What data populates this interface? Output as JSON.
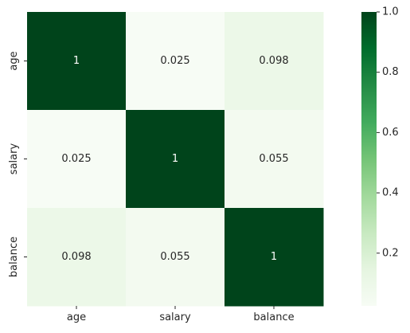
{
  "chart_data": {
    "type": "heatmap",
    "title": "",
    "xlabel": "",
    "ylabel": "",
    "x_categories": [
      "age",
      "salary",
      "balance"
    ],
    "y_categories": [
      "age",
      "salary",
      "balance"
    ],
    "values": [
      [
        1,
        0.025,
        0.098
      ],
      [
        0.025,
        1,
        0.055
      ],
      [
        0.098,
        0.055,
        1
      ]
    ],
    "cell_labels": [
      [
        "1",
        "0.025",
        "0.098"
      ],
      [
        "0.025",
        "1",
        "0.055"
      ],
      [
        "0.098",
        "0.055",
        "1"
      ]
    ],
    "annotated": true,
    "colormap": "Greens",
    "colormap_stops": [
      "#f7fcf5",
      "#e5f5e0",
      "#c7e9c0",
      "#a1d99b",
      "#74c476",
      "#41ab5d",
      "#238b45",
      "#006d2c",
      "#00441b"
    ],
    "colorbar": {
      "range": [
        0.025,
        1
      ],
      "ticks": [
        0.2,
        0.4,
        0.6,
        0.8,
        1.0
      ],
      "tick_labels": [
        "0.2",
        "0.4",
        "0.6",
        "0.8",
        "1.0"
      ],
      "position": "right"
    },
    "grid": false,
    "legend": "none"
  }
}
